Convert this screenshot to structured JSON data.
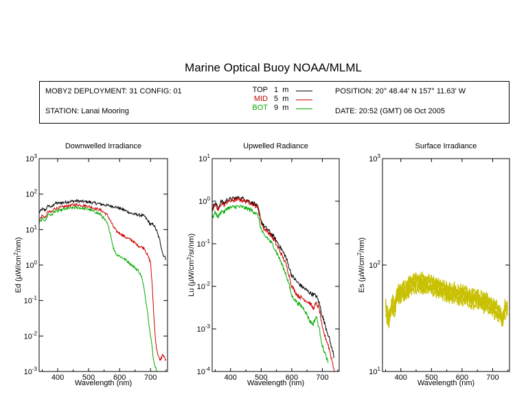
{
  "title": "Marine Optical Buoy NOAA/MLML",
  "info": {
    "deployment": "MOBY2 DEPLOYMENT: 31 CONFIG: 01",
    "station": "STATION: Lanai Mooring",
    "position": "POSITION: 20° 48.44' N   157° 11.63' W",
    "date": "DATE: 20:52 (GMT) 06 Oct 2005"
  },
  "legend": [
    {
      "name": "TOP",
      "depth": "1  m",
      "color": "#000000"
    },
    {
      "name": "MID",
      "depth": "5  m",
      "color": "#cc0000"
    },
    {
      "name": "BOT",
      "depth": "9  m",
      "color": "#00aa00"
    }
  ],
  "chart_data": [
    {
      "type": "line",
      "title": "Downwelled Irradiance",
      "xlabel": "Wavelength (nm)",
      "ylabel_main": "Ed  (µW/cm",
      "ylabel_sup": "2",
      "ylabel_tail": "/nm)",
      "xlim": [
        340,
        755
      ],
      "ylim_log10": [
        -3,
        3
      ],
      "yscale": "log",
      "xticks": [
        400,
        500,
        600,
        700
      ],
      "yticks": [
        {
          "e": -3,
          "label": "-3"
        },
        {
          "e": -2,
          "label": "-2"
        },
        {
          "e": -1,
          "label": "-1"
        },
        {
          "e": 0,
          "label": "0"
        },
        {
          "e": 1,
          "label": "1"
        },
        {
          "e": 2,
          "label": "2"
        },
        {
          "e": 3,
          "label": "3"
        }
      ],
      "series": [
        {
          "name": "TOP",
          "color": "#000000",
          "noise": 0.04,
          "points": [
            [
              340,
              30
            ],
            [
              350,
              38
            ],
            [
              360,
              35
            ],
            [
              370,
              48
            ],
            [
              380,
              42
            ],
            [
              390,
              55
            ],
            [
              400,
              55
            ],
            [
              420,
              58
            ],
            [
              440,
              62
            ],
            [
              460,
              64
            ],
            [
              480,
              62
            ],
            [
              500,
              60
            ],
            [
              520,
              56
            ],
            [
              540,
              52
            ],
            [
              560,
              48
            ],
            [
              580,
              45
            ],
            [
              600,
              40
            ],
            [
              620,
              34
            ],
            [
              640,
              28
            ],
            [
              660,
              26
            ],
            [
              680,
              24
            ],
            [
              700,
              14
            ],
            [
              710,
              14
            ],
            [
              720,
              9
            ],
            [
              730,
              5
            ],
            [
              740,
              2
            ],
            [
              750,
              1.5
            ]
          ]
        },
        {
          "name": "MID",
          "color": "#cc0000",
          "noise": 0.04,
          "points": [
            [
              340,
              18
            ],
            [
              350,
              25
            ],
            [
              360,
              22
            ],
            [
              370,
              33
            ],
            [
              380,
              30
            ],
            [
              390,
              40
            ],
            [
              400,
              40
            ],
            [
              420,
              44
            ],
            [
              440,
              48
            ],
            [
              460,
              50
            ],
            [
              480,
              48
            ],
            [
              500,
              45
            ],
            [
              520,
              40
            ],
            [
              540,
              35
            ],
            [
              560,
              26
            ],
            [
              570,
              18
            ],
            [
              580,
              12
            ],
            [
              590,
              9
            ],
            [
              600,
              8
            ],
            [
              620,
              6
            ],
            [
              640,
              5
            ],
            [
              660,
              3.5
            ],
            [
              680,
              3
            ],
            [
              700,
              1.2
            ],
            [
              705,
              0.3
            ],
            [
              710,
              0.05
            ],
            [
              715,
              0.01
            ],
            [
              720,
              0.004
            ],
            [
              730,
              0.002
            ],
            [
              740,
              0.003
            ],
            [
              750,
              0.002
            ]
          ]
        },
        {
          "name": "BOT",
          "color": "#00aa00",
          "noise": 0.04,
          "points": [
            [
              340,
              15
            ],
            [
              350,
              20
            ],
            [
              360,
              18
            ],
            [
              370,
              28
            ],
            [
              380,
              25
            ],
            [
              390,
              33
            ],
            [
              400,
              33
            ],
            [
              420,
              37
            ],
            [
              440,
              40
            ],
            [
              460,
              42
            ],
            [
              480,
              40
            ],
            [
              500,
              37
            ],
            [
              520,
              32
            ],
            [
              540,
              26
            ],
            [
              560,
              15
            ],
            [
              570,
              8
            ],
            [
              580,
              3
            ],
            [
              590,
              2
            ],
            [
              600,
              1.8
            ],
            [
              620,
              1.4
            ],
            [
              640,
              1
            ],
            [
              660,
              0.7
            ],
            [
              670,
              0.5
            ],
            [
              680,
              0.2
            ],
            [
              690,
              0.05
            ],
            [
              700,
              0.01
            ],
            [
              705,
              0.005
            ],
            [
              710,
              0.002
            ],
            [
              720,
              0.001
            ]
          ]
        }
      ]
    },
    {
      "type": "line",
      "title": "Upwelled Radiance",
      "xlabel": "Wavelength (nm)",
      "ylabel_main": "Lu  (µW/cm",
      "ylabel_sup": "2",
      "ylabel_tail": "/sr/nm)",
      "xlim": [
        340,
        755
      ],
      "ylim_log10": [
        -4,
        1
      ],
      "yscale": "log",
      "xticks": [
        400,
        500,
        600,
        700
      ],
      "yticks": [
        {
          "e": -4,
          "label": "-4"
        },
        {
          "e": -3,
          "label": "-3"
        },
        {
          "e": -2,
          "label": "-2"
        },
        {
          "e": -1,
          "label": "-1"
        },
        {
          "e": 0,
          "label": "0"
        },
        {
          "e": 1,
          "label": "1"
        }
      ],
      "series": [
        {
          "name": "TOP",
          "color": "#000000",
          "noise": 0.05,
          "points": [
            [
              340,
              0.7
            ],
            [
              350,
              0.9
            ],
            [
              360,
              0.7
            ],
            [
              370,
              1.0
            ],
            [
              380,
              0.9
            ],
            [
              390,
              1.1
            ],
            [
              400,
              1.1
            ],
            [
              420,
              1.2
            ],
            [
              440,
              1.15
            ],
            [
              460,
              1.0
            ],
            [
              480,
              0.85
            ],
            [
              490,
              0.7
            ],
            [
              500,
              0.35
            ],
            [
              510,
              0.25
            ],
            [
              520,
              0.22
            ],
            [
              540,
              0.15
            ],
            [
              560,
              0.09
            ],
            [
              580,
              0.05
            ],
            [
              590,
              0.03
            ],
            [
              600,
              0.018
            ],
            [
              620,
              0.012
            ],
            [
              640,
              0.009
            ],
            [
              660,
              0.007
            ],
            [
              680,
              0.006
            ],
            [
              690,
              0.004
            ],
            [
              700,
              0.002
            ],
            [
              720,
              0.0007
            ],
            [
              740,
              0.0002
            ]
          ]
        },
        {
          "name": "MID",
          "color": "#cc0000",
          "noise": 0.05,
          "points": [
            [
              340,
              0.6
            ],
            [
              350,
              0.8
            ],
            [
              360,
              0.6
            ],
            [
              370,
              0.9
            ],
            [
              380,
              0.8
            ],
            [
              390,
              1.0
            ],
            [
              400,
              1.0
            ],
            [
              420,
              1.1
            ],
            [
              440,
              1.05
            ],
            [
              460,
              0.95
            ],
            [
              480,
              0.8
            ],
            [
              490,
              0.65
            ],
            [
              500,
              0.32
            ],
            [
              510,
              0.22
            ],
            [
              520,
              0.2
            ],
            [
              540,
              0.13
            ],
            [
              560,
              0.07
            ],
            [
              580,
              0.035
            ],
            [
              590,
              0.02
            ],
            [
              600,
              0.01
            ],
            [
              620,
              0.006
            ],
            [
              640,
              0.005
            ],
            [
              660,
              0.004
            ],
            [
              670,
              0.003
            ],
            [
              680,
              0.004
            ],
            [
              690,
              0.003
            ],
            [
              700,
              0.001
            ],
            [
              720,
              0.0004
            ],
            [
              740,
              0.0001
            ]
          ]
        },
        {
          "name": "BOT",
          "color": "#00aa00",
          "noise": 0.05,
          "points": [
            [
              340,
              0.4
            ],
            [
              350,
              0.55
            ],
            [
              360,
              0.42
            ],
            [
              370,
              0.6
            ],
            [
              380,
              0.55
            ],
            [
              390,
              0.7
            ],
            [
              400,
              0.7
            ],
            [
              420,
              0.75
            ],
            [
              440,
              0.72
            ],
            [
              460,
              0.65
            ],
            [
              480,
              0.55
            ],
            [
              490,
              0.45
            ],
            [
              500,
              0.22
            ],
            [
              510,
              0.15
            ],
            [
              520,
              0.14
            ],
            [
              540,
              0.09
            ],
            [
              560,
              0.045
            ],
            [
              580,
              0.02
            ],
            [
              590,
              0.012
            ],
            [
              600,
              0.006
            ],
            [
              620,
              0.004
            ],
            [
              640,
              0.003
            ],
            [
              660,
              0.0015
            ],
            [
              670,
              0.0013
            ],
            [
              680,
              0.002
            ],
            [
              690,
              0.001
            ],
            [
              700,
              0.0004
            ],
            [
              720,
              0.00015
            ]
          ]
        }
      ]
    },
    {
      "type": "line",
      "title": "Surface Irradiance",
      "xlabel": "Wavelength (nm)",
      "ylabel_main": "Es  (µW/cm",
      "ylabel_sup": "2",
      "ylabel_tail": "/nm)",
      "xlim": [
        340,
        755
      ],
      "ylim_log10": [
        1,
        3
      ],
      "yscale": "log",
      "xticks": [
        400,
        500,
        600,
        700
      ],
      "yticks": [
        {
          "e": 1,
          "label": "1"
        },
        {
          "e": 2,
          "label": "2"
        },
        {
          "e": 3,
          "label": "3"
        }
      ],
      "series": [
        {
          "name": "Es",
          "color": "#c8c000",
          "noise": 0.06,
          "copies": 6,
          "spread": 0.02,
          "points": [
            [
              350,
              40
            ],
            [
              360,
              30
            ],
            [
              370,
              42
            ],
            [
              380,
              40
            ],
            [
              390,
              55
            ],
            [
              400,
              54
            ],
            [
              420,
              60
            ],
            [
              440,
              66
            ],
            [
              460,
              70
            ],
            [
              480,
              66
            ],
            [
              500,
              64
            ],
            [
              520,
              60
            ],
            [
              540,
              58
            ],
            [
              560,
              55
            ],
            [
              580,
              54
            ],
            [
              600,
              52
            ],
            [
              620,
              50
            ],
            [
              640,
              48
            ],
            [
              660,
              46
            ],
            [
              680,
              44
            ],
            [
              700,
              40
            ],
            [
              720,
              36
            ],
            [
              730,
              30
            ],
            [
              740,
              38
            ],
            [
              750,
              40
            ]
          ]
        }
      ]
    }
  ]
}
